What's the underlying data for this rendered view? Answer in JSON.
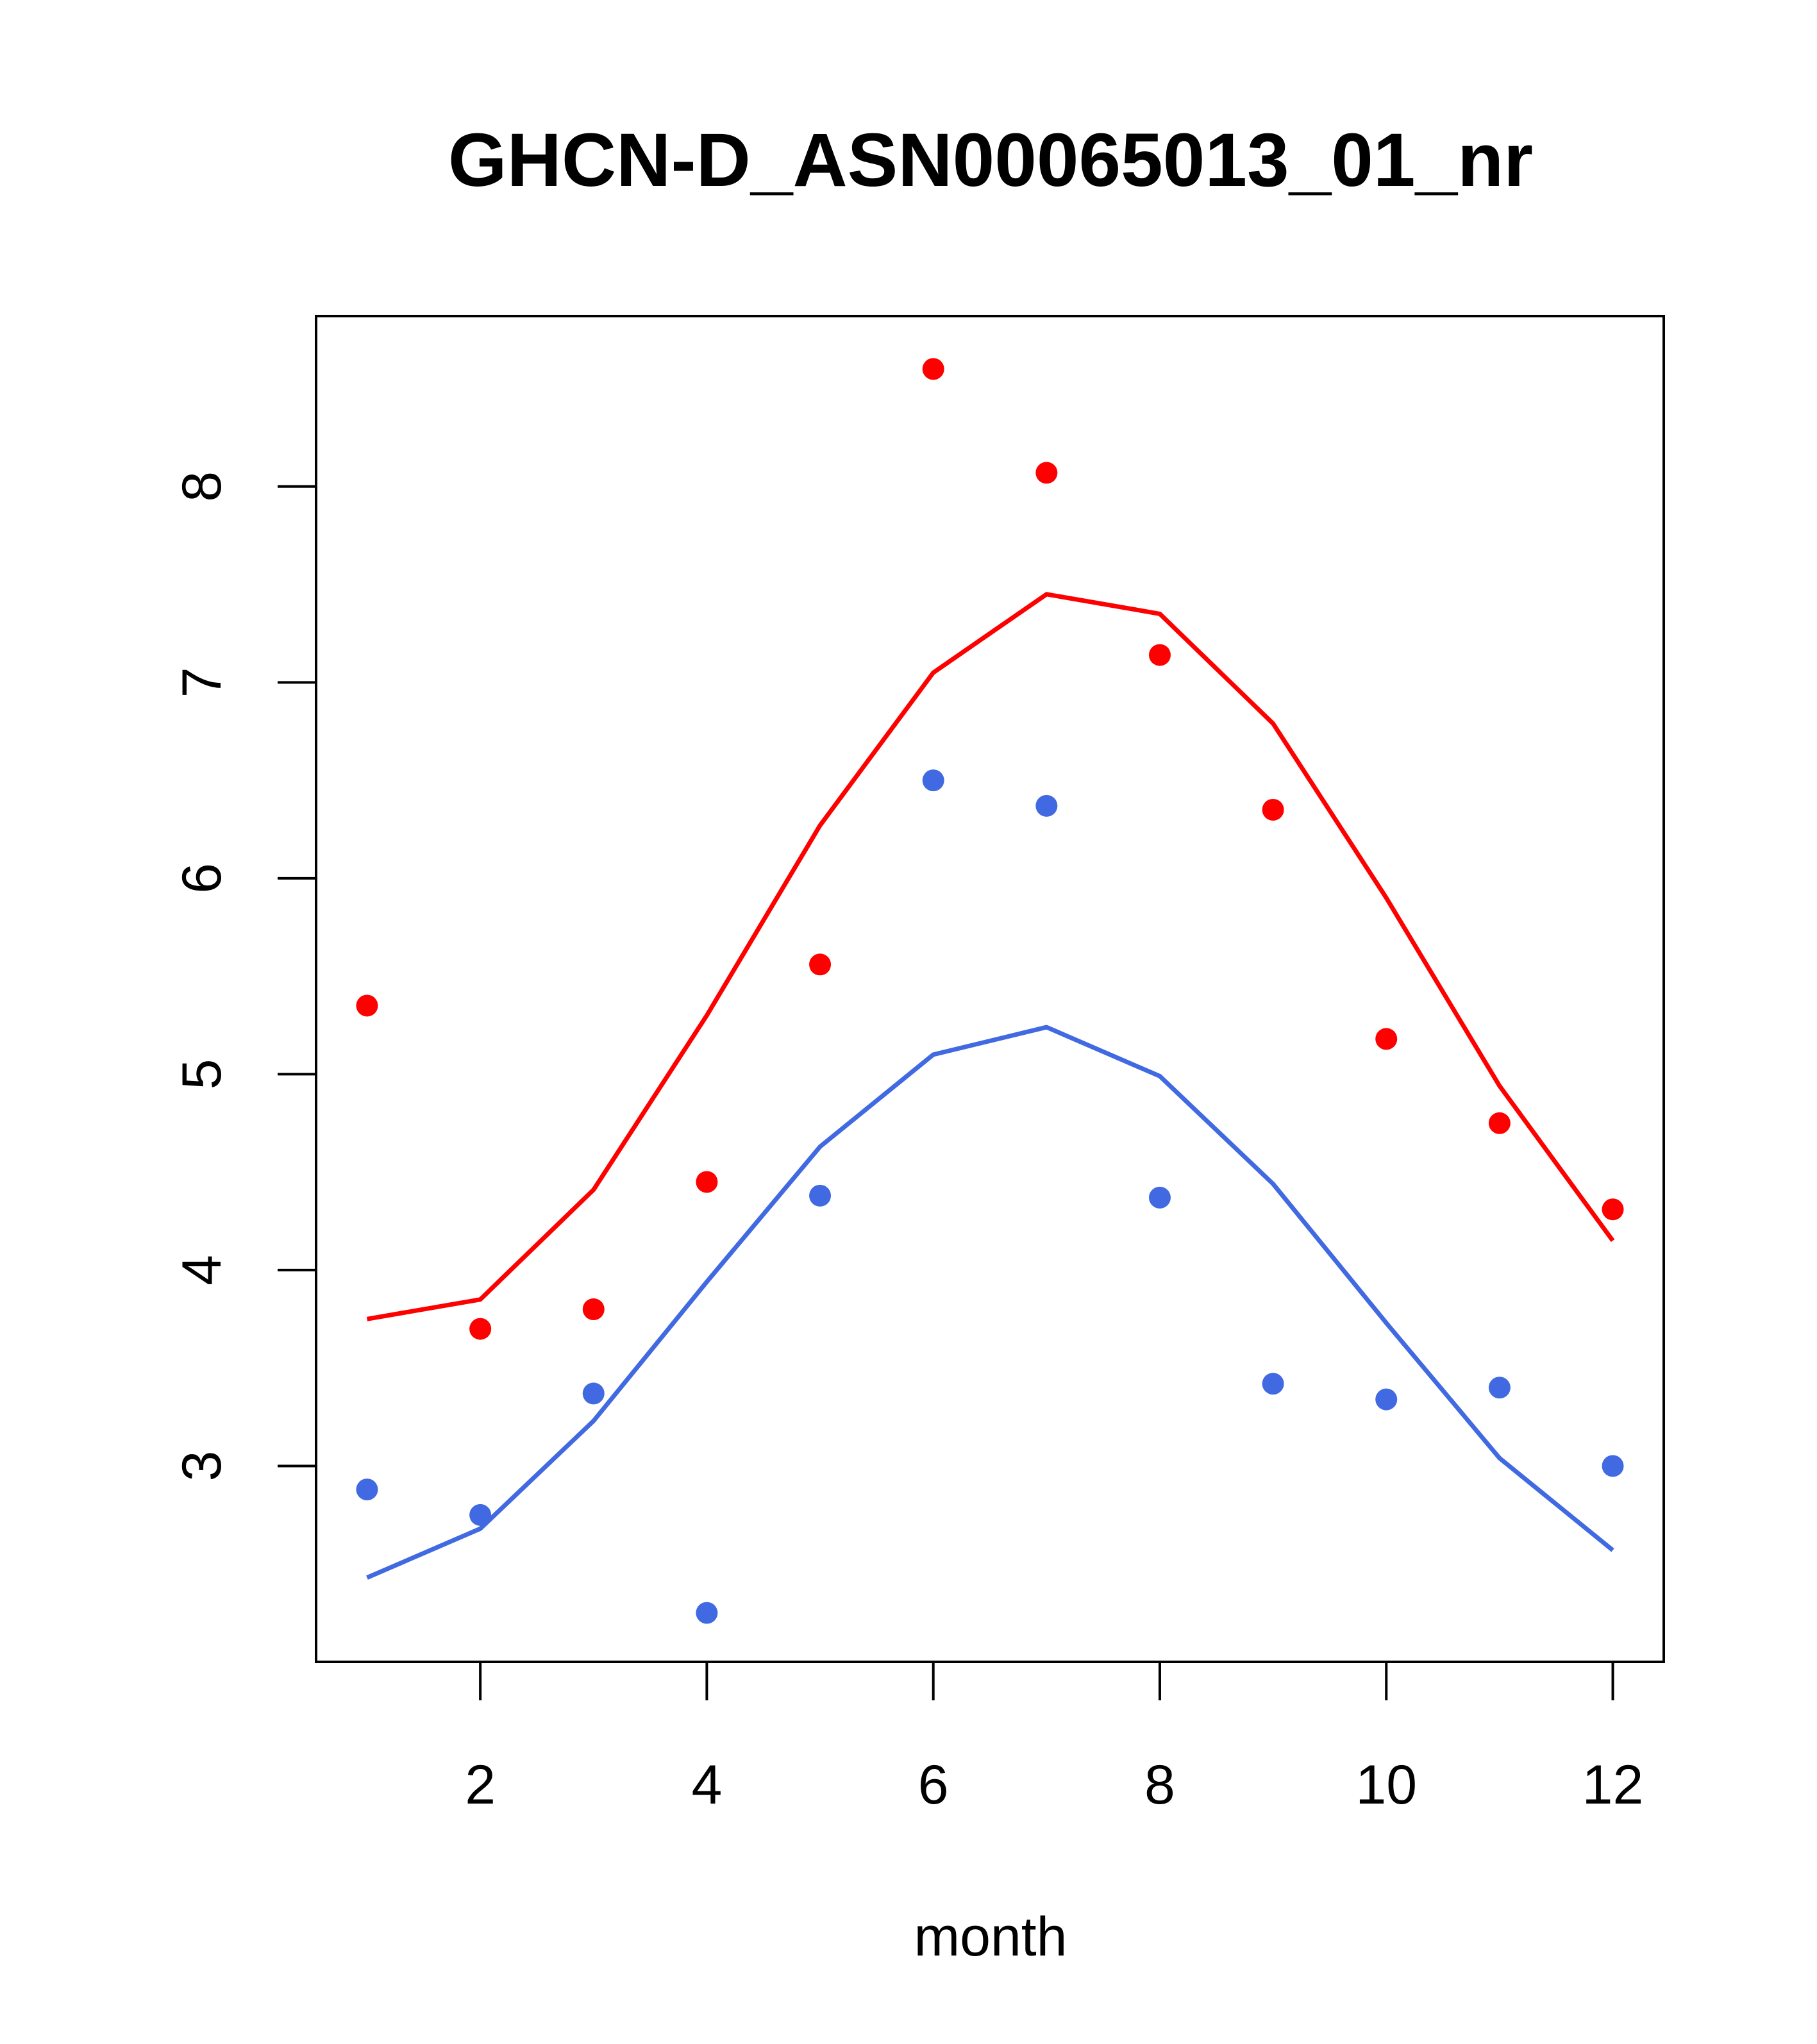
{
  "chart_data": {
    "type": "line",
    "title": "GHCN-D_ASN00065013_01_nr",
    "xlabel": "month",
    "ylabel": "",
    "xlim": [
      0.55,
      12.45
    ],
    "ylim": [
      2.0,
      8.87
    ],
    "x_ticks": [
      2,
      4,
      6,
      8,
      10,
      12
    ],
    "y_ticks": [
      3,
      4,
      5,
      6,
      7,
      8
    ],
    "x_tick_labels": [
      "2",
      "4",
      "6",
      "8",
      "10",
      "12"
    ],
    "y_tick_labels": [
      "3",
      "4",
      "5",
      "6",
      "7",
      "8"
    ],
    "grid": false,
    "legend": "none",
    "x": [
      1,
      2,
      3,
      4,
      5,
      6,
      7,
      8,
      9,
      10,
      11,
      12
    ],
    "series": [
      {
        "color": "#ff0000",
        "line": [
          3.75,
          3.85,
          4.41,
          5.3,
          6.27,
          7.05,
          7.45,
          7.35,
          6.79,
          5.9,
          4.94,
          4.15
        ],
        "points": [
          5.35,
          3.7,
          3.8,
          4.45,
          5.56,
          8.6,
          8.07,
          7.14,
          6.35,
          5.18,
          4.75,
          4.31
        ]
      },
      {
        "color": "#4169e1",
        "line": [
          2.43,
          2.68,
          3.23,
          3.94,
          4.63,
          5.1,
          5.24,
          4.99,
          4.44,
          3.73,
          3.04,
          2.57
        ],
        "points": [
          2.88,
          2.75,
          3.37,
          2.25,
          4.38,
          6.5,
          6.37,
          4.37,
          3.42,
          3.34,
          3.4,
          3.0
        ]
      }
    ]
  }
}
